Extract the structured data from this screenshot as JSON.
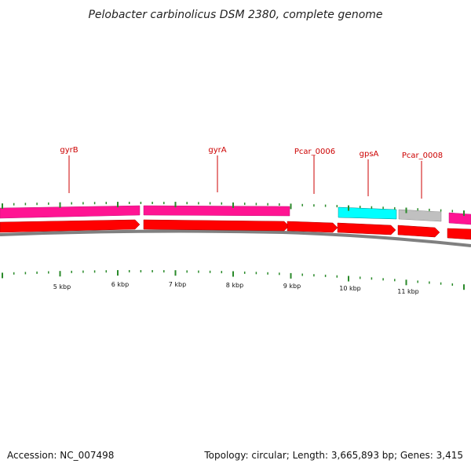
{
  "title": "Pelobacter carbinolicus DSM 2380, complete genome",
  "footer": {
    "accession": "Accession: NC_007498",
    "summary": "Topology: circular; Length: 3,665,893 bp; Genes: 3,415"
  },
  "colors": {
    "forward_cds": "#ff0000",
    "rna_or_hypothetical": "#ff1493",
    "tick": "#2a8a2a",
    "backbone": "#808080",
    "gene_label": "#cc0000",
    "pseudo": "#c0c0c0",
    "gpsA": "#00ffff"
  },
  "scale_labels": [
    "5 kbp",
    "6 kbp",
    "7 kbp",
    "8 kbp",
    "9 kbp",
    "10 kbp",
    "11 kbp"
  ],
  "gene_labels": [
    "gyrB",
    "gyrA",
    "Pcar_0006",
    "gpsA",
    "Pcar_0008"
  ]
}
